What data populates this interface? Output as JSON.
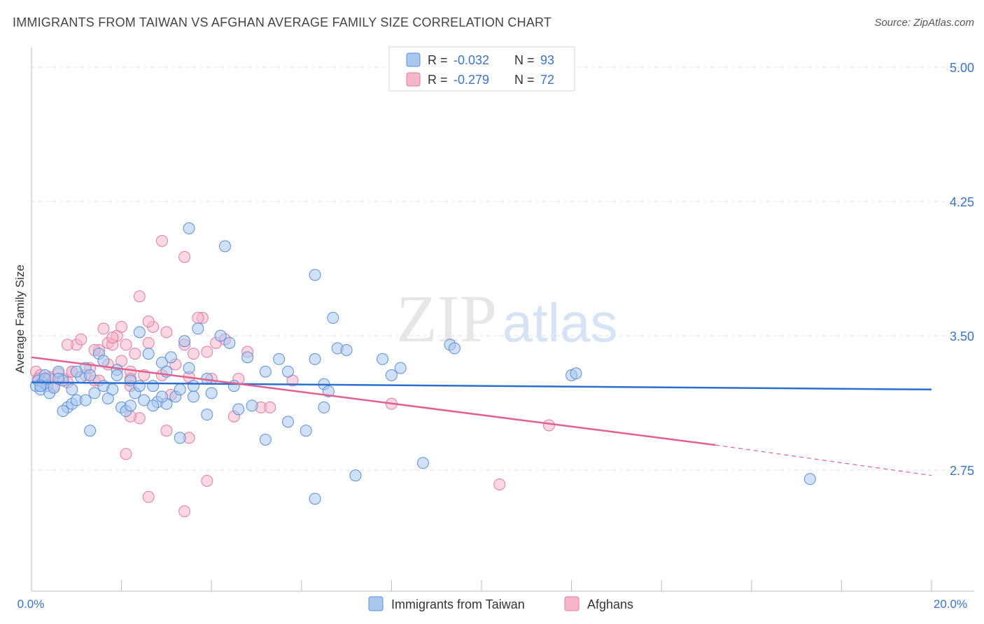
{
  "header": {
    "title": "IMMIGRANTS FROM TAIWAN VS AFGHAN AVERAGE FAMILY SIZE CORRELATION CHART",
    "source": "Source: ZipAtlas.com"
  },
  "watermark": {
    "zip": "ZIP",
    "atlas": "atlas"
  },
  "colors": {
    "taiwan_fill": "#a9c7ef",
    "taiwan_stroke": "#5b8fd6",
    "taiwan_line": "#2a6fcf",
    "afghan_fill": "#f6b6ca",
    "afghan_stroke": "#e27ba0",
    "afghan_line": "#e0608e",
    "tick_label": "#3b73c7",
    "grid": "#dddddd"
  },
  "legend": {
    "items": [
      {
        "r_label": "R =",
        "r_value": "-0.032",
        "n_label": "N =",
        "n_value": "93"
      },
      {
        "r_label": "R =",
        "r_value": "-0.279",
        "n_label": "N =",
        "n_value": "72"
      }
    ]
  },
  "chart_data": {
    "type": "scatter",
    "ylabel": "Average Family Size",
    "xlim": [
      0,
      20
    ],
    "ylim": [
      2.2,
      5.1
    ],
    "y_ticks": [
      {
        "value": 5.0,
        "label": "5.00"
      },
      {
        "value": 4.25,
        "label": "4.25"
      },
      {
        "value": 3.5,
        "label": "3.50"
      },
      {
        "value": 2.75,
        "label": "2.75"
      }
    ],
    "x_tick_labels": [
      {
        "value": 0,
        "label": "0.0%"
      },
      {
        "value": 20,
        "label": "20.0%"
      }
    ],
    "grid": true,
    "series": [
      {
        "name": "Immigrants from Taiwan",
        "color": "#5b8fd6",
        "trend": {
          "x0": 0,
          "y0": 3.24,
          "x1": 20,
          "y1": 3.2
        },
        "points": [
          [
            0.1,
            3.22
          ],
          [
            0.15,
            3.25
          ],
          [
            0.2,
            3.2
          ],
          [
            0.25,
            3.24
          ],
          [
            0.3,
            3.28
          ],
          [
            0.35,
            3.22
          ],
          [
            0.4,
            3.18
          ],
          [
            0.5,
            3.21
          ],
          [
            0.6,
            3.3
          ],
          [
            0.7,
            3.25
          ],
          [
            0.8,
            3.1
          ],
          [
            0.9,
            3.12
          ],
          [
            1.0,
            3.14
          ],
          [
            1.1,
            3.27
          ],
          [
            1.2,
            3.32
          ],
          [
            1.3,
            3.28
          ],
          [
            1.4,
            3.18
          ],
          [
            1.5,
            3.4
          ],
          [
            1.6,
            3.22
          ],
          [
            1.7,
            3.15
          ],
          [
            1.8,
            3.2
          ],
          [
            1.9,
            3.31
          ],
          [
            2.0,
            3.1
          ],
          [
            2.1,
            3.08
          ],
          [
            2.2,
            3.25
          ],
          [
            2.3,
            3.18
          ],
          [
            2.4,
            3.52
          ],
          [
            2.5,
            3.14
          ],
          [
            2.6,
            3.4
          ],
          [
            2.7,
            3.22
          ],
          [
            2.8,
            3.13
          ],
          [
            2.9,
            3.35
          ],
          [
            3.0,
            3.12
          ],
          [
            3.1,
            3.38
          ],
          [
            3.2,
            3.16
          ],
          [
            3.3,
            3.2
          ],
          [
            3.4,
            3.47
          ],
          [
            3.5,
            3.32
          ],
          [
            3.6,
            3.22
          ],
          [
            3.7,
            3.54
          ],
          [
            3.9,
            3.26
          ],
          [
            4.2,
            3.5
          ],
          [
            4.4,
            3.46
          ],
          [
            4.5,
            3.22
          ],
          [
            4.6,
            3.09
          ],
          [
            4.8,
            3.38
          ],
          [
            5.2,
            3.3
          ],
          [
            5.5,
            3.37
          ],
          [
            5.7,
            3.02
          ],
          [
            6.3,
            3.37
          ],
          [
            6.5,
            3.23
          ],
          [
            6.6,
            3.19
          ],
          [
            6.8,
            3.43
          ],
          [
            7.0,
            3.42
          ],
          [
            7.8,
            3.37
          ],
          [
            8.0,
            3.28
          ],
          [
            8.2,
            3.32
          ],
          [
            9.3,
            3.45
          ],
          [
            9.4,
            3.43
          ],
          [
            12.0,
            3.28
          ],
          [
            12.1,
            3.29
          ],
          [
            3.5,
            4.1
          ],
          [
            4.3,
            4.0
          ],
          [
            6.3,
            3.84
          ],
          [
            6.7,
            3.6
          ],
          [
            2.9,
            3.16
          ],
          [
            3.3,
            2.93
          ],
          [
            3.9,
            3.06
          ],
          [
            5.2,
            2.92
          ],
          [
            6.1,
            2.97
          ],
          [
            6.3,
            2.59
          ],
          [
            7.2,
            2.72
          ],
          [
            8.7,
            2.79
          ],
          [
            17.3,
            2.7
          ],
          [
            1.3,
            2.97
          ],
          [
            0.7,
            3.08
          ],
          [
            1.6,
            3.36
          ],
          [
            2.4,
            3.22
          ],
          [
            3.0,
            3.3
          ],
          [
            2.2,
            3.11
          ],
          [
            1.0,
            3.3
          ],
          [
            0.6,
            3.26
          ],
          [
            0.9,
            3.2
          ],
          [
            1.9,
            3.28
          ],
          [
            2.7,
            3.11
          ],
          [
            3.6,
            3.16
          ],
          [
            4.9,
            3.11
          ],
          [
            5.7,
            3.3
          ],
          [
            4.0,
            3.18
          ],
          [
            1.2,
            3.14
          ],
          [
            0.3,
            3.26
          ],
          [
            0.2,
            3.22
          ],
          [
            6.5,
            3.1
          ]
        ]
      },
      {
        "name": "Afghans",
        "color": "#e27ba0",
        "trend": {
          "x0": 0,
          "y0": 3.38,
          "x1": 15.2,
          "y1": 2.89,
          "dash_x1": 20,
          "dash_y1": 2.72
        },
        "points": [
          [
            0.1,
            3.3
          ],
          [
            0.2,
            3.28
          ],
          [
            0.3,
            3.25
          ],
          [
            0.4,
            3.27
          ],
          [
            0.5,
            3.22
          ],
          [
            0.6,
            3.29
          ],
          [
            0.7,
            3.26
          ],
          [
            0.8,
            3.24
          ],
          [
            0.9,
            3.3
          ],
          [
            1.0,
            3.45
          ],
          [
            1.1,
            3.48
          ],
          [
            1.2,
            3.28
          ],
          [
            1.3,
            3.32
          ],
          [
            1.4,
            3.25
          ],
          [
            1.5,
            3.42
          ],
          [
            1.6,
            3.54
          ],
          [
            1.7,
            3.46
          ],
          [
            1.8,
            3.45
          ],
          [
            1.9,
            3.5
          ],
          [
            2.0,
            3.36
          ],
          [
            2.1,
            3.45
          ],
          [
            2.2,
            3.3
          ],
          [
            2.3,
            3.4
          ],
          [
            2.5,
            3.28
          ],
          [
            2.6,
            3.46
          ],
          [
            2.7,
            3.55
          ],
          [
            2.9,
            3.28
          ],
          [
            3.0,
            3.52
          ],
          [
            3.2,
            3.34
          ],
          [
            3.4,
            3.45
          ],
          [
            3.5,
            3.27
          ],
          [
            3.6,
            3.4
          ],
          [
            3.8,
            3.6
          ],
          [
            4.1,
            3.46
          ],
          [
            4.3,
            3.48
          ],
          [
            4.6,
            3.26
          ],
          [
            4.8,
            3.41
          ],
          [
            5.1,
            3.1
          ],
          [
            5.3,
            3.1
          ],
          [
            5.8,
            3.25
          ],
          [
            8.0,
            3.12
          ],
          [
            11.5,
            3.0
          ],
          [
            2.4,
            3.72
          ],
          [
            2.9,
            4.03
          ],
          [
            3.4,
            3.94
          ],
          [
            2.1,
            2.84
          ],
          [
            2.6,
            2.6
          ],
          [
            3.0,
            2.97
          ],
          [
            3.5,
            2.93
          ],
          [
            3.9,
            2.69
          ],
          [
            3.4,
            2.52
          ],
          [
            4.5,
            3.05
          ],
          [
            10.4,
            2.67
          ],
          [
            2.4,
            3.04
          ],
          [
            1.4,
            3.42
          ],
          [
            0.8,
            3.45
          ],
          [
            2.2,
            3.05
          ],
          [
            3.1,
            3.17
          ],
          [
            1.7,
            3.34
          ],
          [
            2.2,
            3.26
          ],
          [
            0.4,
            3.26
          ],
          [
            0.3,
            3.23
          ],
          [
            2.6,
            3.58
          ],
          [
            3.9,
            3.41
          ],
          [
            0.15,
            3.26
          ],
          [
            4.0,
            3.26
          ],
          [
            2.0,
            3.55
          ],
          [
            1.5,
            3.25
          ],
          [
            0.9,
            3.3
          ],
          [
            2.2,
            3.22
          ],
          [
            1.8,
            3.49
          ],
          [
            3.7,
            3.6
          ]
        ]
      }
    ]
  }
}
